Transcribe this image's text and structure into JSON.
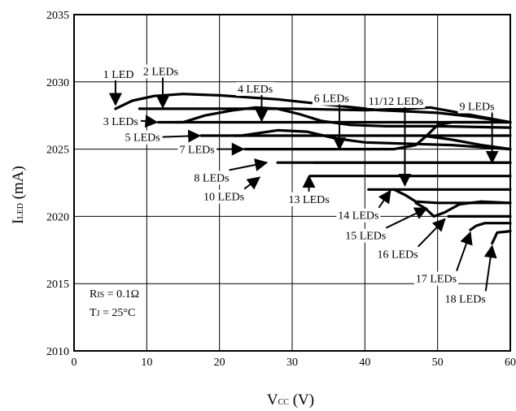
{
  "chart_data": {
    "type": "line",
    "title": "",
    "xlabel": {
      "main": "V",
      "sub": "CC",
      "unit": "(V)"
    },
    "ylabel": {
      "main": "I",
      "sub": "LED",
      "unit": "(mA)"
    },
    "xlim": [
      0,
      60
    ],
    "ylim": [
      2010,
      2035
    ],
    "xticks": [
      0,
      10,
      20,
      30,
      40,
      50,
      60
    ],
    "yticks": [
      2010,
      2015,
      2020,
      2025,
      2030,
      2035
    ],
    "grid": true,
    "annotation": {
      "line1": {
        "main": "R",
        "sub": "IS",
        "rest": " = 0.1Ω"
      },
      "line2": {
        "main": "T",
        "sub": "J",
        "rest": " = 25°C"
      }
    },
    "series": [
      {
        "name": "1 LED",
        "points": [
          [
            5.7,
            2028
          ],
          [
            8,
            2028.6
          ],
          [
            11,
            2028.95
          ],
          [
            15,
            2029.1
          ],
          [
            20,
            2029
          ],
          [
            28,
            2028.7
          ],
          [
            35,
            2028.3
          ],
          [
            42,
            2027.9
          ],
          [
            50,
            2027.7
          ],
          [
            55,
            2027.4
          ],
          [
            60,
            2027
          ]
        ]
      },
      {
        "name": "2 LEDs",
        "points": [
          [
            9,
            2028
          ],
          [
            30,
            2028
          ],
          [
            40,
            2027.9
          ],
          [
            46,
            2028
          ],
          [
            49,
            2028.1
          ],
          [
            52,
            2027.8
          ],
          [
            56,
            2027.4
          ],
          [
            60,
            2027
          ]
        ]
      },
      {
        "name": "3 LEDs",
        "points": [
          [
            11.6,
            2027
          ],
          [
            15,
            2027
          ],
          [
            18,
            2027.5
          ],
          [
            22,
            2027.9
          ],
          [
            25,
            2028.1
          ],
          [
            28,
            2028
          ],
          [
            31,
            2027.6
          ],
          [
            34,
            2027.1
          ],
          [
            38,
            2026.8
          ],
          [
            43,
            2026.7
          ],
          [
            50,
            2026.7
          ],
          [
            60,
            2026.6
          ]
        ]
      },
      {
        "name": "4 LEDs",
        "points": [
          [
            14,
            2027
          ],
          [
            60,
            2027
          ]
        ]
      },
      {
        "name": "5 LEDs",
        "points": [
          [
            17.5,
            2026
          ],
          [
            23,
            2026
          ],
          [
            28,
            2026.4
          ],
          [
            32,
            2026.3
          ],
          [
            36,
            2025.8
          ],
          [
            40,
            2025.5
          ],
          [
            46,
            2025.4
          ],
          [
            52,
            2025.3
          ],
          [
            60,
            2025
          ]
        ]
      },
      {
        "name": "6 LEDs",
        "points": [
          [
            22,
            2026
          ],
          [
            60,
            2026
          ]
        ]
      },
      {
        "name": "7 LEDs",
        "points": [
          [
            23.5,
            2025
          ],
          [
            33,
            2025
          ],
          [
            40,
            2025
          ],
          [
            44,
            2025
          ],
          [
            47,
            2025.3
          ],
          [
            48.5,
            2026
          ],
          [
            50,
            2026.8
          ],
          [
            52,
            2027
          ],
          [
            60,
            2027
          ]
        ]
      },
      {
        "name": "8 LEDs",
        "points": [
          [
            28,
            2024
          ],
          [
            60,
            2024
          ]
        ]
      },
      {
        "name": "9 LEDs",
        "points": [
          [
            48,
            2026
          ],
          [
            52,
            2025.7
          ],
          [
            56,
            2025.3
          ],
          [
            60,
            2025
          ]
        ]
      },
      {
        "name": "10 LEDs",
        "points": [
          [
            32.5,
            2023
          ],
          [
            60,
            2023
          ]
        ]
      },
      {
        "name": "11/12 LEDs",
        "points": [
          [
            33,
            2024
          ],
          [
            60,
            2024
          ]
        ]
      },
      {
        "name": "13 LEDs",
        "points": [
          [
            40.5,
            2022
          ],
          [
            60,
            2022
          ]
        ]
      },
      {
        "name": "14 LEDs",
        "points": [
          [
            44,
            2022
          ],
          [
            45.5,
            2021.6
          ],
          [
            47,
            2021.1
          ],
          [
            50,
            2021
          ],
          [
            60,
            2021
          ]
        ]
      },
      {
        "name": "15 LEDs",
        "points": [
          [
            47,
            2021
          ],
          [
            48.3,
            2020.6
          ],
          [
            49.5,
            2020
          ],
          [
            51,
            2020.3
          ],
          [
            53,
            2020.9
          ],
          [
            56,
            2021.1
          ],
          [
            60,
            2021
          ]
        ]
      },
      {
        "name": "16 LEDs",
        "points": [
          [
            51.5,
            2020
          ],
          [
            60,
            2020
          ]
        ]
      },
      {
        "name": "17 LEDs",
        "points": [
          [
            54.5,
            2019
          ],
          [
            55.3,
            2019.3
          ],
          [
            56.5,
            2019.5
          ],
          [
            60,
            2019.5
          ]
        ]
      },
      {
        "name": "18 LEDs",
        "points": [
          [
            57.5,
            2018
          ],
          [
            58.2,
            2018.8
          ],
          [
            60,
            2018.9
          ]
        ]
      }
    ],
    "labels": [
      {
        "text": "1 LED",
        "x": 4.0,
        "y": 2030.3,
        "arrow_to": [
          5.7,
          2028.3
        ]
      },
      {
        "text": "2 LEDs",
        "x": 9.5,
        "y": 2030.5,
        "arrow_to": [
          12.2,
          2028.1
        ]
      },
      {
        "text": "4 LEDs",
        "x": 22.5,
        "y": 2029.2,
        "arrow_to": [
          25.8,
          2027.1
        ]
      },
      {
        "text": "6 LEDs",
        "x": 33.0,
        "y": 2028.5,
        "arrow_to": [
          36.5,
          2025.0
        ]
      },
      {
        "text": "11/12 LEDs",
        "x": 40.5,
        "y": 2028.3,
        "arrow_to": [
          45.5,
          2022.3
        ]
      },
      {
        "text": "9 LEDs",
        "x": 53.0,
        "y": 2027.9,
        "arrow_to": [
          57.5,
          2024.0
        ]
      },
      {
        "text": "3 LEDs",
        "x": 4.0,
        "y": 2026.8,
        "arrow_to": [
          11.4,
          2027.0
        ]
      },
      {
        "text": "5 LEDs",
        "x": 7.0,
        "y": 2025.6,
        "arrow_to": [
          17.3,
          2026.0
        ]
      },
      {
        "text": "7 LEDs",
        "x": 14.5,
        "y": 2024.7,
        "arrow_to": [
          23.3,
          2025.0
        ]
      },
      {
        "text": "8 LEDs",
        "x": 16.5,
        "y": 2022.6,
        "arrow_to": [
          26.5,
          2024.0
        ]
      },
      {
        "text": "10 LEDs",
        "x": 17.8,
        "y": 2021.2,
        "arrow_to": [
          25.5,
          2022.9
        ]
      },
      {
        "text": "13 LEDs",
        "x": 29.5,
        "y": 2021.0,
        "arrow_to": [
          32.3,
          2023.0
        ]
      },
      {
        "text": "14 LEDs",
        "x": 36.3,
        "y": 2019.8,
        "arrow_to": [
          43.5,
          2021.9
        ]
      },
      {
        "text": "15 LEDs",
        "x": 37.3,
        "y": 2018.3,
        "arrow_to": [
          48.5,
          2020.6
        ]
      },
      {
        "text": "16 LEDs",
        "x": 41.7,
        "y": 2016.9,
        "arrow_to": [
          51.0,
          2019.8
        ]
      },
      {
        "text": "17 LEDs",
        "x": 47.0,
        "y": 2015.1,
        "arrow_to": [
          54.5,
          2018.8
        ]
      },
      {
        "text": "18 LEDs",
        "x": 51.0,
        "y": 2013.6,
        "arrow_to": [
          57.5,
          2017.8
        ]
      }
    ]
  }
}
